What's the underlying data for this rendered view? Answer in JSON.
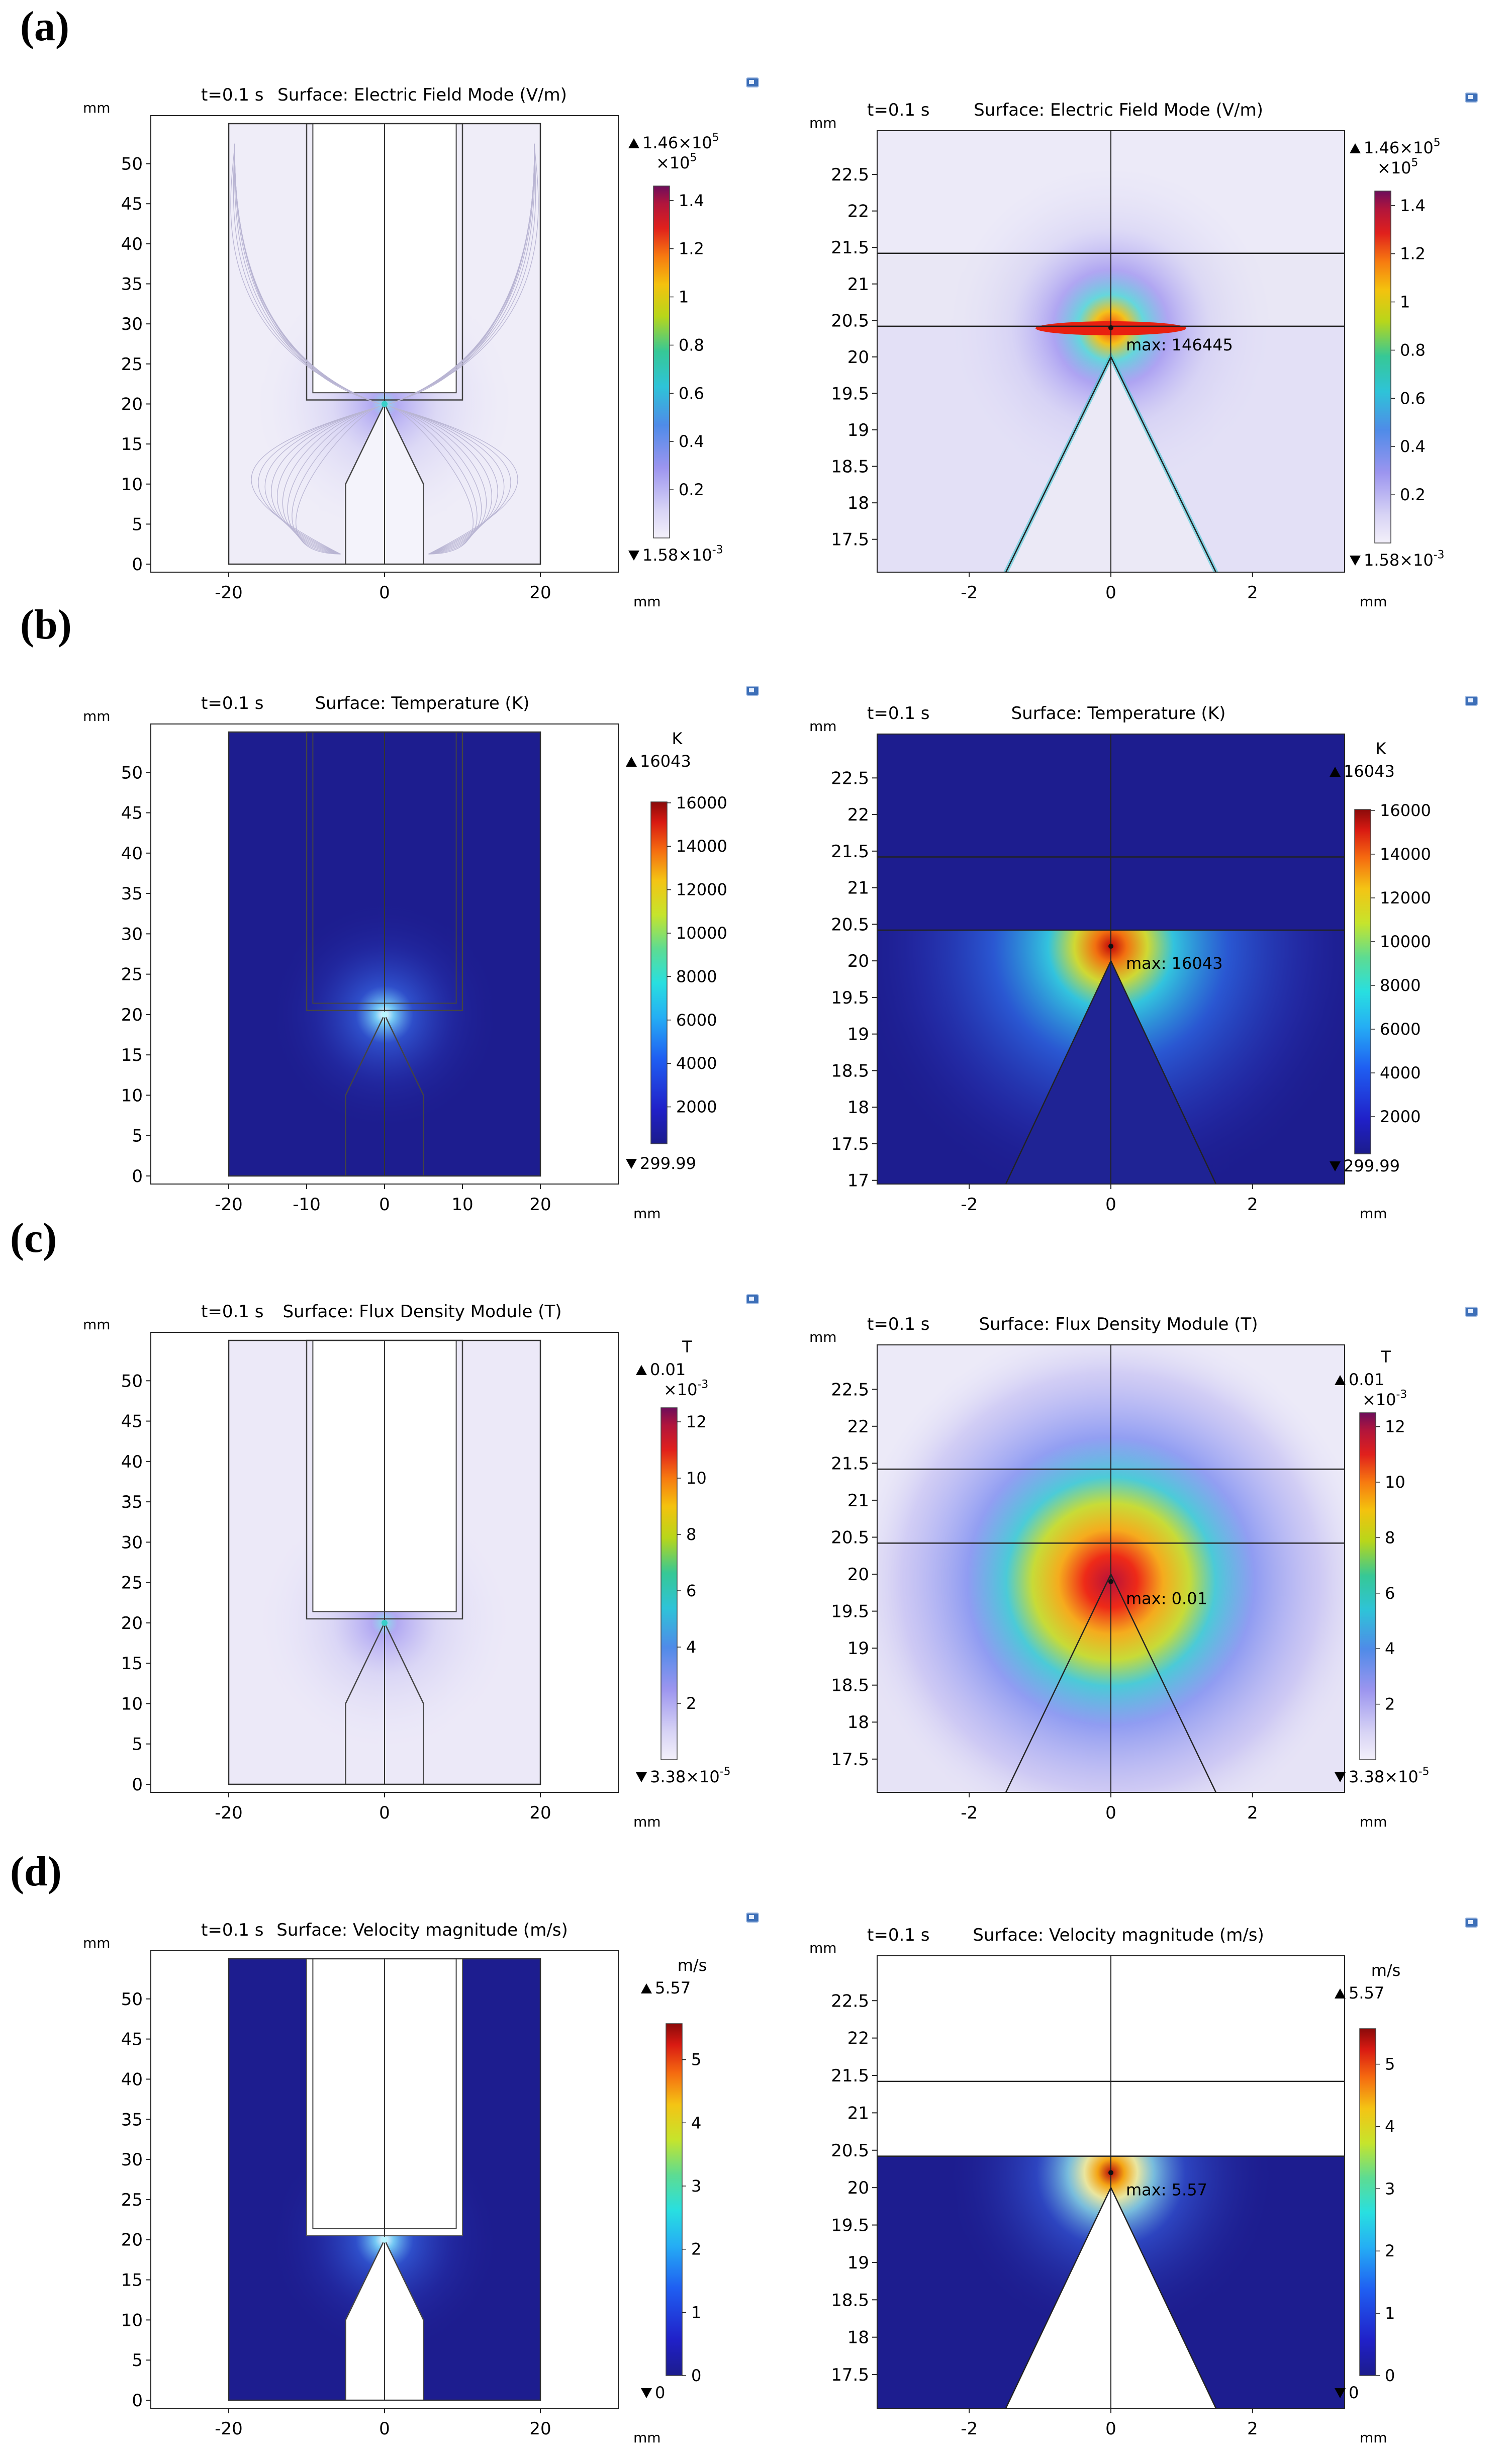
{
  "figure": {
    "panels": [
      {
        "label": "(a)",
        "left": {
          "time": "t=0.1 s",
          "title": "Surface: Electric Field Mode (V/m)",
          "max_label": ""
        },
        "right": {
          "time": "t=0.1 s",
          "title": "Surface: Electric Field Mode (V/m)",
          "max_label": "max: 146445"
        },
        "colorbar": {
          "unit": "",
          "max_text": "1.46×10",
          "max_exp": "5",
          "mult_text": "×10",
          "mult_exp": "5",
          "min_text": "1.58×10",
          "min_exp": "-3",
          "ticks": [
            0.2,
            0.4,
            0.6,
            0.8,
            1,
            1.2,
            1.4
          ],
          "range": [
            0,
            1.46
          ],
          "colormap": "rainbow_light"
        }
      },
      {
        "label": "(b)",
        "left": {
          "time": "t=0.1 s",
          "title": "Surface: Temperature (K)",
          "max_label": ""
        },
        "right": {
          "time": "t=0.1 s",
          "title": "Surface: Temperature (K)",
          "max_label": "max: 16043"
        },
        "colorbar": {
          "unit": "K",
          "max_text": "16043",
          "max_exp": "",
          "mult_text": "",
          "mult_exp": "",
          "min_text": "299.99",
          "min_exp": "",
          "ticks": [
            2000,
            4000,
            6000,
            8000,
            10000,
            12000,
            14000,
            16000
          ],
          "range": [
            299.99,
            16043
          ],
          "colormap": "jet"
        }
      },
      {
        "label": "(c)",
        "left": {
          "time": "t=0.1 s",
          "title": "Surface: Flux Density Module (T)",
          "max_label": ""
        },
        "right": {
          "time": "t=0.1 s",
          "title": "Surface: Flux Density Module (T)",
          "max_label": "max: 0.01"
        },
        "colorbar": {
          "unit": "T",
          "max_text": "0.01",
          "max_exp": "",
          "mult_text": "×10",
          "mult_exp": "-3",
          "min_text": "3.38×10",
          "min_exp": "-5",
          "ticks": [
            2,
            4,
            6,
            8,
            10,
            12
          ],
          "range": [
            0,
            12.5
          ],
          "colormap": "rainbow_light"
        }
      },
      {
        "label": "(d)",
        "left": {
          "time": "t=0.1 s",
          "title": "Surface: Velocity magnitude (m/s)",
          "max_label": ""
        },
        "right": {
          "time": "t=0.1 s",
          "title": "Surface: Velocity magnitude (m/s)",
          "max_label": "max: 5.57"
        },
        "colorbar": {
          "unit": "m/s",
          "max_text": "5.57",
          "max_exp": "",
          "mult_text": "",
          "mult_exp": "",
          "min_text": "0",
          "min_exp": "",
          "ticks": [
            0,
            1,
            2,
            3,
            4,
            5
          ],
          "range": [
            0,
            5.57
          ],
          "colormap": "jet"
        }
      }
    ],
    "axis_unit": "mm"
  },
  "chart_data": [
    {
      "type": "heatmap",
      "panel": "a-left",
      "title": "Surface: Electric Field Mode (V/m)",
      "xlabel": "mm",
      "ylabel": "mm",
      "xlim": [
        -30,
        30
      ],
      "ylim": [
        -1,
        56
      ],
      "xticks": [
        -20,
        0,
        20
      ],
      "yticks": [
        0,
        5,
        10,
        15,
        20,
        25,
        30,
        35,
        40,
        45,
        50
      ],
      "hotspot": [
        0,
        20
      ],
      "max_value": 146445
    },
    {
      "type": "heatmap",
      "panel": "a-right",
      "title": "Surface: Electric Field Mode (V/m)",
      "xlabel": "mm",
      "ylabel": "mm",
      "xlim": [
        -3.3,
        3.3
      ],
      "ylim": [
        17.05,
        23.1
      ],
      "xticks": [
        -2,
        0,
        2
      ],
      "yticks": [
        17.5,
        18,
        18.5,
        19,
        19.5,
        20,
        20.5,
        21,
        21.5,
        22,
        22.5
      ],
      "hotspot": [
        0,
        20.4
      ],
      "max_value": 146445
    },
    {
      "type": "heatmap",
      "panel": "b-left",
      "title": "Surface: Temperature (K)",
      "xlabel": "mm",
      "ylabel": "mm",
      "xlim": [
        -30,
        30
      ],
      "ylim": [
        -1,
        56
      ],
      "xticks": [
        -20,
        -10,
        0,
        10,
        20
      ],
      "yticks": [
        0,
        5,
        10,
        15,
        20,
        25,
        30,
        35,
        40,
        45,
        50
      ],
      "hotspot": [
        0,
        20
      ],
      "max_value": 16043
    },
    {
      "type": "heatmap",
      "panel": "b-right",
      "title": "Surface: Temperature (K)",
      "xlabel": "mm",
      "ylabel": "mm",
      "xlim": [
        -3.3,
        3.3
      ],
      "ylim": [
        16.95,
        23.1
      ],
      "xticks": [
        -2,
        0,
        2
      ],
      "yticks": [
        17,
        17.5,
        18,
        18.5,
        19,
        19.5,
        20,
        20.5,
        21,
        21.5,
        22,
        22.5
      ],
      "hotspot": [
        0,
        20.2
      ],
      "max_value": 16043
    },
    {
      "type": "heatmap",
      "panel": "c-left",
      "title": "Surface: Flux Density Module (T)",
      "xlabel": "mm",
      "ylabel": "mm",
      "xlim": [
        -30,
        30
      ],
      "ylim": [
        -1,
        56
      ],
      "xticks": [
        -20,
        0,
        20
      ],
      "yticks": [
        0,
        5,
        10,
        15,
        20,
        25,
        30,
        35,
        40,
        45,
        50
      ],
      "hotspot": [
        0,
        20
      ],
      "max_value": 0.01
    },
    {
      "type": "heatmap",
      "panel": "c-right",
      "title": "Surface: Flux Density Module (T)",
      "xlabel": "mm",
      "ylabel": "mm",
      "xlim": [
        -3.3,
        3.3
      ],
      "ylim": [
        17.05,
        23.1
      ],
      "xticks": [
        -2,
        0,
        2
      ],
      "yticks": [
        17.5,
        18,
        18.5,
        19,
        19.5,
        20,
        20.5,
        21,
        21.5,
        22,
        22.5
      ],
      "hotspot": [
        0,
        19.9
      ],
      "max_value": 0.01
    },
    {
      "type": "heatmap",
      "panel": "d-left",
      "title": "Surface: Velocity magnitude (m/s)",
      "xlabel": "mm",
      "ylabel": "mm",
      "xlim": [
        -30,
        30
      ],
      "ylim": [
        -1,
        56
      ],
      "xticks": [
        -20,
        0,
        20
      ],
      "yticks": [
        0,
        5,
        10,
        15,
        20,
        25,
        30,
        35,
        40,
        45,
        50
      ],
      "hotspot": [
        0,
        20
      ],
      "max_value": 5.57
    },
    {
      "type": "heatmap",
      "panel": "d-right",
      "title": "Surface: Velocity magnitude (m/s)",
      "xlabel": "mm",
      "ylabel": "mm",
      "xlim": [
        -3.3,
        3.3
      ],
      "ylim": [
        17.05,
        23.1
      ],
      "xticks": [
        -2,
        0,
        2
      ],
      "yticks": [
        17.5,
        18,
        18.5,
        19,
        19.5,
        20,
        20.5,
        21,
        21.5,
        22,
        22.5
      ],
      "hotspot": [
        0,
        20.2
      ],
      "max_value": 5.57
    }
  ]
}
